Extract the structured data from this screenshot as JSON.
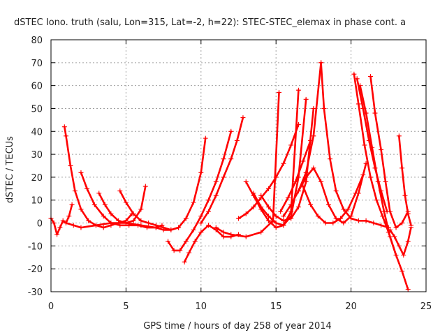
{
  "chart_data": {
    "type": "scatter",
    "title": "dSTEC Iono. truth (salu, Lon=315, Lat=-2, h=22): STEC-STEC_elemax in phase cont. a",
    "xlabel": "GPS time / hours of day 258 of year 2014",
    "ylabel": "dSTEC  / TECUs",
    "xlim": [
      0,
      25
    ],
    "ylim": [
      -30,
      80
    ],
    "xticks": [
      0,
      5,
      10,
      15,
      20,
      25
    ],
    "yticks": [
      -30,
      -20,
      -10,
      0,
      10,
      20,
      30,
      40,
      50,
      60,
      70,
      80
    ],
    "grid": true,
    "marker": "+",
    "color": "#ff0000",
    "arcs": [
      {
        "x": [
          0.0,
          0.2,
          0.4,
          0.6,
          0.8,
          1.0,
          1.2,
          1.4
        ],
        "y": [
          2,
          0,
          -5,
          -2,
          1,
          0,
          3,
          8
        ]
      },
      {
        "x": [
          0.9,
          1.0,
          1.3,
          1.6,
          2.0,
          2.5,
          3.0,
          3.5,
          4.0,
          4.5,
          5.0,
          5.4
        ],
        "y": [
          42,
          38,
          25,
          14,
          6,
          1,
          -1,
          -2,
          -1,
          0,
          1,
          4
        ]
      },
      {
        "x": [
          2.0,
          2.4,
          2.9,
          3.5,
          4.0,
          4.6,
          5.2,
          5.8,
          6.4,
          7.0,
          7.4
        ],
        "y": [
          22,
          15,
          8,
          3,
          0,
          -1,
          -1,
          -1,
          -2,
          -2,
          -1
        ]
      },
      {
        "x": [
          3.2,
          3.6,
          4.0,
          4.5,
          5.0,
          5.5,
          6.0,
          6.3
        ],
        "y": [
          13,
          8,
          4,
          1,
          0,
          1,
          6,
          16
        ]
      },
      {
        "x": [
          4.6,
          5.0,
          5.5,
          6.0,
          6.5,
          7.0,
          7.5,
          8.0,
          8.5
        ],
        "y": [
          14,
          9,
          4,
          1,
          0,
          -1,
          -2,
          -3,
          -2
        ]
      },
      {
        "x": [
          1.0,
          1.5,
          2.0,
          3.0,
          4.0,
          5.0,
          6.0,
          7.0,
          7.5,
          8.0,
          8.5,
          9.0,
          9.5,
          10.0,
          10.3
        ],
        "y": [
          0,
          -1,
          -2,
          -1,
          0,
          0,
          -1,
          -2,
          -3,
          -3,
          -2,
          2,
          9,
          22,
          37
        ]
      },
      {
        "x": [
          7.8,
          8.2,
          8.6,
          9.0,
          9.5,
          10.0,
          10.5,
          11.0,
          11.5,
          12.0
        ],
        "y": [
          -8,
          -12,
          -12,
          -8,
          -3,
          3,
          10,
          18,
          28,
          40
        ]
      },
      {
        "x": [
          8.9,
          9.2,
          9.6,
          10.0,
          10.5,
          11.0,
          11.5,
          12.0,
          12.5
        ],
        "y": [
          -17,
          -13,
          -8,
          -4,
          -1,
          -3,
          -6,
          -6,
          -5
        ]
      },
      {
        "x": [
          10.0,
          10.5,
          11.0,
          11.5,
          12.0,
          12.4,
          12.8
        ],
        "y": [
          0,
          5,
          12,
          20,
          28,
          36,
          46
        ]
      },
      {
        "x": [
          11.0,
          11.5,
          12.0,
          13.0,
          14.0,
          14.8,
          15.2
        ],
        "y": [
          -2,
          -4,
          -5,
          -6,
          -4,
          1,
          57
        ]
      },
      {
        "x": [
          13.0,
          13.5,
          14.0,
          14.5,
          15.0,
          15.5,
          16.0,
          16.5
        ],
        "y": [
          18,
          12,
          6,
          1,
          -2,
          -1,
          5,
          58
        ]
      },
      {
        "x": [
          13.5,
          14.0,
          14.5,
          15.0,
          15.5,
          16.0,
          16.5,
          17.0
        ],
        "y": [
          13,
          7,
          3,
          0,
          -1,
          3,
          20,
          54
        ]
      },
      {
        "x": [
          14.0,
          14.5,
          15.0,
          15.5,
          16.0,
          16.5,
          17.0,
          17.5
        ],
        "y": [
          12,
          7,
          3,
          1,
          2,
          7,
          18,
          50
        ]
      },
      {
        "x": [
          12.5,
          13.0,
          13.5,
          14.0,
          14.5,
          15.0,
          15.5,
          16.0,
          16.5
        ],
        "y": [
          2,
          4,
          7,
          11,
          15,
          20,
          26,
          34,
          43
        ]
      },
      {
        "x": [
          15.3,
          15.8,
          16.3,
          16.8,
          17.3
        ],
        "y": [
          5,
          11,
          18,
          27,
          36
        ]
      },
      {
        "x": [
          15.5,
          16.0,
          16.5,
          17.0,
          17.5,
          18.0,
          18.5,
          19.0,
          19.5,
          20.0,
          20.5,
          21.0
        ],
        "y": [
          3,
          8,
          14,
          20,
          24,
          18,
          8,
          2,
          0,
          3,
          13,
          26
        ]
      },
      {
        "x": [
          16.5,
          17.0,
          17.5,
          18.0
        ],
        "y": [
          14,
          22,
          38,
          70
        ]
      },
      {
        "x": [
          18.0,
          18.2,
          18.6,
          19.0,
          19.5,
          20.0,
          20.5,
          21.0,
          21.5,
          22.0,
          22.5
        ],
        "y": [
          70,
          50,
          28,
          14,
          6,
          2,
          1,
          1,
          0,
          -1,
          -2
        ]
      },
      {
        "x": [
          16.8,
          17.3,
          17.8,
          18.3,
          18.8,
          19.3,
          19.8,
          20.3,
          20.8
        ],
        "y": [
          16,
          8,
          3,
          0,
          0,
          2,
          6,
          13,
          21
        ]
      },
      {
        "x": [
          20.2,
          20.5,
          20.9,
          21.3,
          21.7,
          22.1,
          22.5,
          23.0
        ],
        "y": [
          65,
          52,
          34,
          20,
          10,
          3,
          -4,
          -14
        ]
      },
      {
        "x": [
          20.4,
          20.8,
          21.2,
          21.6,
          22.0,
          22.4
        ],
        "y": [
          63,
          50,
          36,
          24,
          14,
          5
        ]
      },
      {
        "x": [
          20.6,
          21.0,
          21.4,
          21.8,
          22.2,
          22.6,
          23.0,
          23.4,
          23.8
        ],
        "y": [
          60,
          48,
          33,
          18,
          5,
          -6,
          -14,
          -21,
          -29
        ]
      },
      {
        "x": [
          21.3,
          21.6,
          22.0,
          22.3,
          22.6,
          23.0,
          23.4,
          23.8
        ],
        "y": [
          64,
          48,
          32,
          18,
          5,
          -2,
          0,
          5
        ]
      },
      {
        "x": [
          23.2,
          23.4,
          23.6,
          23.8,
          24.0
        ],
        "y": [
          38,
          24,
          12,
          4,
          -1
        ]
      },
      {
        "x": [
          22.6,
          22.9,
          23.2,
          23.5,
          23.8,
          24.0
        ],
        "y": [
          -3,
          -6,
          -10,
          -14,
          -8,
          -2
        ]
      }
    ]
  }
}
